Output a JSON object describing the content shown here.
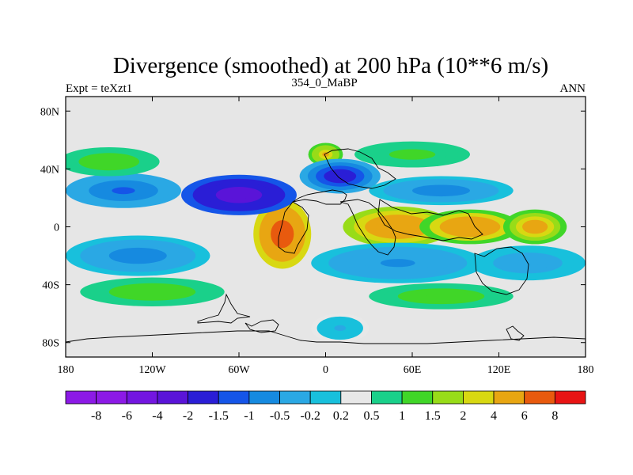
{
  "chart_data": {
    "type": "heatmap",
    "title": "Divergence (smoothed) at 200 hPa (10**6 m/s)",
    "left_string": "Expt = teXzt1",
    "center_string": "354_0_MaBP",
    "right_string": "ANN",
    "x_ticks": [
      "180",
      "120W",
      "60W",
      "0",
      "60E",
      "120E",
      "180"
    ],
    "x_tick_values": [
      -180,
      -120,
      -60,
      0,
      60,
      120,
      180
    ],
    "y_ticks": [
      "80N",
      "40N",
      "0",
      "40S",
      "80S"
    ],
    "y_tick_values": [
      80,
      40,
      0,
      -40,
      -80
    ],
    "xlim": [
      -180,
      180
    ],
    "ylim": [
      -90,
      90
    ],
    "colorbar": {
      "labels": [
        "-8",
        "-6",
        "-4",
        "-2",
        "-1.5",
        "-1",
        "-0.5",
        "-0.2",
        "0.2",
        "0.5",
        "1",
        "1.5",
        "2",
        "4",
        "6",
        "8"
      ],
      "colors": [
        "#8c1ae6",
        "#7316e0",
        "#5a14d8",
        "#2a1ed6",
        "#1555e8",
        "#168ae0",
        "#2aa8e4",
        "#18c0dc",
        "#e8e8e8",
        "#1ad08a",
        "#40d628",
        "#98dc18",
        "#d8d812",
        "#e8a612",
        "#e85a0e",
        "#e81414"
      ]
    },
    "fields": [
      {
        "lon": -30,
        "lat": -5,
        "value": 5.2,
        "rx": 20,
        "ry": 24
      },
      {
        "lon": 50,
        "lat": 0,
        "value": 3.2,
        "rx": 38,
        "ry": 14
      },
      {
        "lon": 100,
        "lat": 0,
        "value": 2.8,
        "rx": 35,
        "ry": 12
      },
      {
        "lon": 145,
        "lat": 0,
        "value": 2.5,
        "rx": 22,
        "ry": 12
      },
      {
        "lon": 0,
        "lat": 50,
        "value": 2.0,
        "rx": 12,
        "ry": 8
      },
      {
        "lon": -60,
        "lat": 22,
        "value": -4.5,
        "rx": 40,
        "ry": 14
      },
      {
        "lon": 10,
        "lat": 35,
        "value": -2.5,
        "rx": 28,
        "ry": 12
      },
      {
        "lon": -140,
        "lat": 25,
        "value": -1.5,
        "rx": 40,
        "ry": 12
      },
      {
        "lon": 80,
        "lat": 25,
        "value": -1.2,
        "rx": 50,
        "ry": 10
      },
      {
        "lon": -130,
        "lat": -20,
        "value": -1.2,
        "rx": 50,
        "ry": 14
      },
      {
        "lon": 50,
        "lat": -25,
        "value": -1.0,
        "rx": 60,
        "ry": 14
      },
      {
        "lon": 140,
        "lat": -25,
        "value": -0.8,
        "rx": 40,
        "ry": 12
      },
      {
        "lon": -150,
        "lat": 45,
        "value": 0.8,
        "rx": 35,
        "ry": 10
      },
      {
        "lon": 60,
        "lat": 50,
        "value": 0.6,
        "rx": 40,
        "ry": 9
      },
      {
        "lon": -120,
        "lat": -45,
        "value": 0.8,
        "rx": 50,
        "ry": 10
      },
      {
        "lon": 80,
        "lat": -48,
        "value": 0.7,
        "rx": 50,
        "ry": 9
      },
      {
        "lon": 10,
        "lat": -70,
        "value": -0.5,
        "rx": 20,
        "ry": 10
      }
    ]
  }
}
